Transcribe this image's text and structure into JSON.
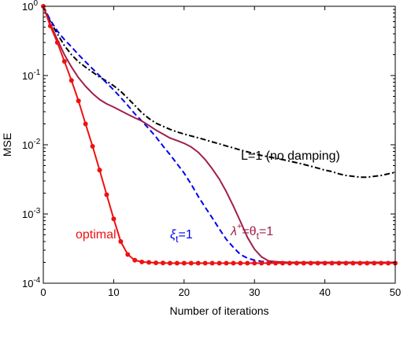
{
  "chart_data": {
    "type": "line",
    "title": "",
    "xlabel": "Number of iterations",
    "ylabel": "MSE",
    "xlim": [
      0,
      50
    ],
    "ylim": [
      0.0001,
      1
    ],
    "yscale": "log",
    "grid": false,
    "x_ticks": [
      0,
      10,
      20,
      30,
      40,
      50
    ],
    "y_ticks": [
      {
        "value": 1,
        "base": "10",
        "exp": "0"
      },
      {
        "value": 0.1,
        "base": "10",
        "exp": "-1"
      },
      {
        "value": 0.01,
        "base": "10",
        "exp": "-2"
      },
      {
        "value": 0.001,
        "base": "10",
        "exp": "-3"
      },
      {
        "value": 0.0001,
        "base": "10",
        "exp": "-4"
      }
    ],
    "series": [
      {
        "color": "#000000",
        "style": "dashdot",
        "markers": false,
        "x": [
          0,
          1,
          2,
          3,
          4,
          5,
          6,
          7,
          8,
          9,
          10,
          11,
          12,
          13,
          14,
          15,
          16,
          17,
          18,
          19,
          20,
          21,
          22,
          23,
          24,
          25,
          26,
          27,
          28,
          29,
          30,
          31,
          32,
          33,
          34,
          35,
          36,
          37,
          38,
          39,
          40,
          41,
          42,
          43,
          44,
          45,
          46,
          47,
          48,
          49,
          50
        ],
        "y": [
          1.0,
          0.6,
          0.4,
          0.27,
          0.2,
          0.158,
          0.132,
          0.112,
          0.095,
          0.083,
          0.071,
          0.059,
          0.047,
          0.037,
          0.029,
          0.024,
          0.0205,
          0.0185,
          0.0167,
          0.0153,
          0.0143,
          0.0134,
          0.0126,
          0.0118,
          0.011,
          0.0103,
          0.0096,
          0.009,
          0.0084,
          0.0079,
          0.0074,
          0.007,
          0.0067,
          0.0064,
          0.0061,
          0.0058,
          0.0055,
          0.0052,
          0.0049,
          0.0046,
          0.0043,
          0.0041,
          0.0038,
          0.0036,
          0.0035,
          0.0034,
          0.0034,
          0.0035,
          0.0036,
          0.0038,
          0.004
        ]
      },
      {
        "color": "#0000ee",
        "style": "dashed",
        "markers": false,
        "x": [
          0,
          1,
          2,
          3,
          4,
          5,
          6,
          7,
          8,
          9,
          10,
          11,
          12,
          13,
          14,
          15,
          16,
          17,
          18,
          19,
          20,
          21,
          22,
          23,
          24,
          25,
          26,
          27,
          28,
          29,
          30,
          31,
          32,
          33,
          34,
          35,
          36,
          37,
          38,
          39,
          40,
          41,
          42,
          43,
          44,
          45,
          46,
          47,
          48,
          49,
          50
        ],
        "y": [
          1.0,
          0.63,
          0.44,
          0.33,
          0.26,
          0.2,
          0.158,
          0.125,
          0.099,
          0.078,
          0.062,
          0.048,
          0.037,
          0.028,
          0.022,
          0.017,
          0.013,
          0.0096,
          0.0072,
          0.0053,
          0.0039,
          0.0027,
          0.0018,
          0.00125,
          0.00088,
          0.00061,
          0.00043,
          0.00033,
          0.00026,
          0.00023,
          0.000215,
          0.000207,
          0.000203,
          0.0002,
          0.0002,
          0.0002,
          0.0002,
          0.0002,
          0.0002,
          0.0002,
          0.0002,
          0.0002,
          0.0002,
          0.0002,
          0.0002,
          0.0002,
          0.0002,
          0.0002,
          0.0002,
          0.0002,
          0.0002
        ]
      },
      {
        "color": "#a0204a",
        "style": "solid",
        "markers": false,
        "x": [
          0,
          1,
          2,
          3,
          4,
          5,
          6,
          7,
          8,
          9,
          10,
          11,
          12,
          13,
          14,
          15,
          16,
          17,
          18,
          19,
          20,
          21,
          22,
          23,
          24,
          25,
          26,
          27,
          28,
          29,
          30,
          31,
          32,
          33,
          34,
          35,
          36,
          37,
          38,
          39,
          40,
          41,
          42,
          43,
          44,
          45,
          46,
          47,
          48,
          49,
          50
        ],
        "y": [
          1.0,
          0.55,
          0.33,
          0.2,
          0.133,
          0.093,
          0.07,
          0.055,
          0.045,
          0.039,
          0.035,
          0.031,
          0.0275,
          0.0245,
          0.022,
          0.019,
          0.0163,
          0.0143,
          0.0125,
          0.0115,
          0.0105,
          0.0093,
          0.0078,
          0.0061,
          0.0045,
          0.0032,
          0.0021,
          0.0013,
          0.00078,
          0.00046,
          0.00031,
          0.00024,
          0.00021,
          0.000205,
          0.000202,
          0.0002,
          0.0002,
          0.0002,
          0.0002,
          0.0002,
          0.0002,
          0.0002,
          0.0002,
          0.0002,
          0.0002,
          0.0002,
          0.0002,
          0.0002,
          0.0002,
          0.0002,
          0.0002
        ]
      },
      {
        "color": "#ee1111",
        "style": "solid",
        "markers": true,
        "x": [
          0,
          1,
          2,
          3,
          4,
          5,
          6,
          7,
          8,
          9,
          10,
          11,
          12,
          13,
          14,
          15,
          16,
          17,
          18,
          19,
          20,
          21,
          22,
          23,
          24,
          25,
          26,
          27,
          28,
          29,
          30,
          31,
          32,
          33,
          34,
          35,
          36,
          37,
          38,
          39,
          40,
          41,
          42,
          43,
          44,
          45,
          46,
          47,
          48,
          49,
          50
        ],
        "y": [
          1.0,
          0.52,
          0.3,
          0.16,
          0.085,
          0.043,
          0.02,
          0.0095,
          0.0043,
          0.0019,
          0.00085,
          0.0004,
          0.00026,
          0.000215,
          0.000203,
          0.0002,
          0.000197,
          0.000196,
          0.000195,
          0.000195,
          0.000195,
          0.000195,
          0.000195,
          0.000195,
          0.000195,
          0.000195,
          0.000195,
          0.000195,
          0.000195,
          0.000195,
          0.000195,
          0.000195,
          0.000195,
          0.000195,
          0.000195,
          0.000195,
          0.000195,
          0.000195,
          0.000195,
          0.000195,
          0.000195,
          0.000195,
          0.000195,
          0.000195,
          0.000195,
          0.000195,
          0.000195,
          0.000195,
          0.000195,
          0.000195,
          0.000195
        ]
      }
    ],
    "annotations": {
      "black": {
        "text": "L=1 (no damping)",
        "color": "#000000"
      },
      "blue": {
        "main": "ξ",
        "sub": "t",
        "rest": "=1",
        "color": "#0000ee"
      },
      "maroon": {
        "main": "λ",
        "sup": "+",
        "eq": "=θ",
        "sub": "t",
        "rest": "=1",
        "color": "#a0204a"
      },
      "red": {
        "text": "optimal",
        "color": "#ee1111"
      }
    }
  }
}
